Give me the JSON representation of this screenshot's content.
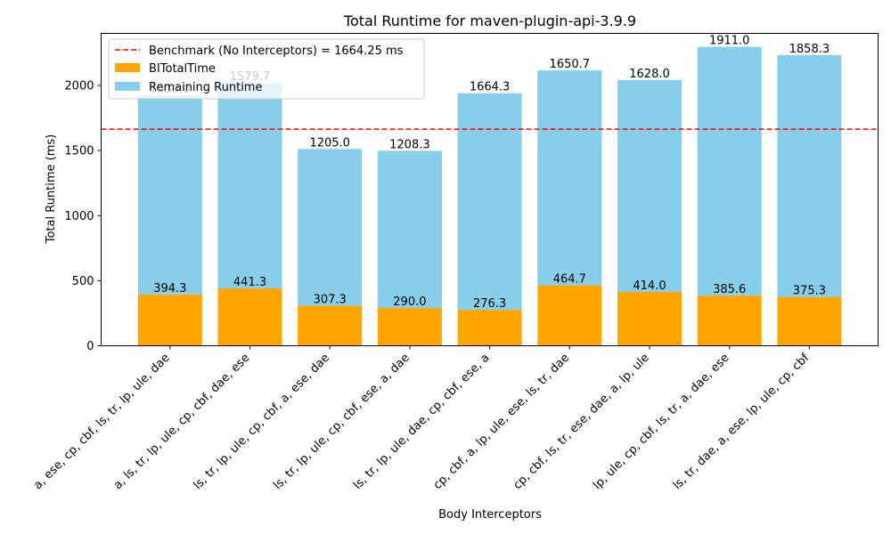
{
  "chart_data": {
    "type": "bar",
    "stacked": true,
    "title": "Total Runtime for maven-plugin-api-3.9.9",
    "xlabel": "Body Interceptors",
    "ylabel": "Total Runtime (ms)",
    "ylim": [
      0,
      2400
    ],
    "yticks": [
      "0",
      "500",
      "1000",
      "1500",
      "2000"
    ],
    "yticks_values": [
      0,
      500,
      1000,
      1500,
      2000
    ],
    "legend_position": "top-left",
    "grid": false,
    "categories": [
      "a, ese, cp, cbf, ls, tr, lp, ule, dae",
      "a, ls, tr, lp, ule, cp, cbf, dae, ese",
      "ls, tr, lp, ule, cp, cbf, a, ese, dae",
      "ls, tr, lp, ule, cp, cbf, ese, a, dae",
      "ls, tr, lp, ule, dae, cp, cbf, ese, a",
      "cp, cbf, a, lp, ule, ese, ls, tr, dae",
      "cp, cbf, ls, tr, ese, dae, a, lp, ule",
      "lp, ule, cp, cbf, ls, tr, a, dae, ese",
      "ls, tr, dae, a, ese, lp, ule, cp, cbf"
    ],
    "series": [
      {
        "name": "BITotalTime",
        "color": "#ffa500",
        "values": [
          394.3,
          441.3,
          307.3,
          290.0,
          276.3,
          464.7,
          414.0,
          385.6,
          375.3
        ],
        "labels": [
          "394.3",
          "441.3",
          "307.3",
          "290.0",
          "276.3",
          "464.7",
          "414.0",
          "385.6",
          "375.3"
        ]
      },
      {
        "name": "Remaining Runtime",
        "color": "#87ceeb",
        "values": [
          1530.0,
          1579.7,
          1205.0,
          1208.3,
          1664.3,
          1650.7,
          1628.0,
          1911.0,
          1858.3
        ],
        "labels": [
          "1530.0",
          "1579.7",
          "1205.0",
          "1208.3",
          "1664.3",
          "1650.7",
          "1628.0",
          "1911.0",
          "1858.3"
        ]
      }
    ],
    "benchmark": {
      "name": "Benchmark (No Interceptors) = 1664.25 ms",
      "value": 1664.25,
      "color": "#ff0000",
      "style": "dashed"
    }
  }
}
